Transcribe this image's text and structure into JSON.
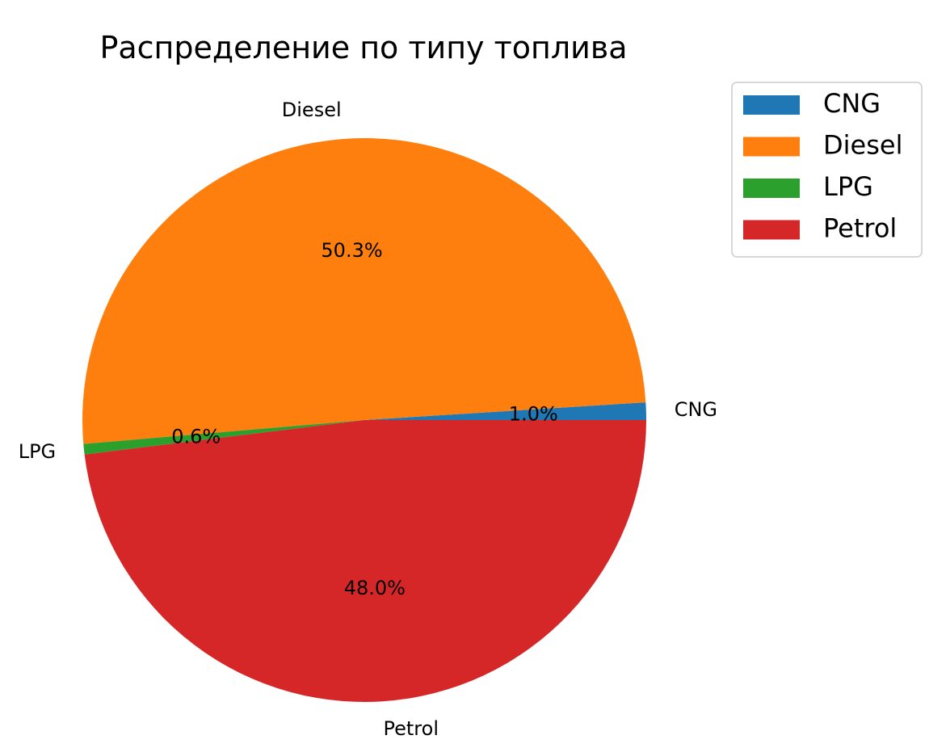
{
  "chart_data": {
    "type": "pie",
    "title": "Распределение по типу топлива",
    "labels": [
      "CNG",
      "Diesel",
      "LPG",
      "Petrol"
    ],
    "values": [
      1.0,
      50.3,
      0.6,
      48.0
    ],
    "value_labels": [
      "1.0%",
      "50.3%",
      "0.6%",
      "48.0%"
    ],
    "colors": [
      "#1f77b4",
      "#ff7f0e",
      "#2ca02c",
      "#d62728"
    ],
    "start_angle": 0,
    "direction": "counterclockwise",
    "legend": {
      "position": "top-right",
      "entries": [
        "CNG",
        "Diesel",
        "LPG",
        "Petrol"
      ]
    }
  }
}
